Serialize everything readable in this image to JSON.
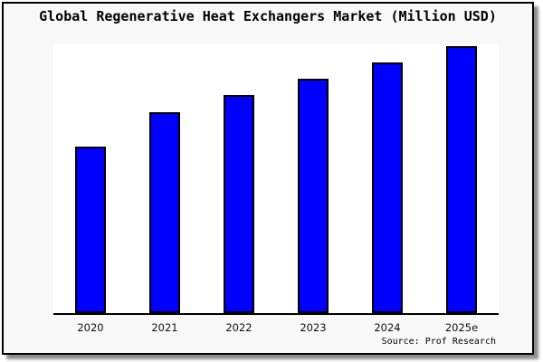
{
  "title": "Global Regenerative Heat Exchangers Market (Million USD)",
  "source": "Source: Prof Research",
  "colors": {
    "bar_fill": "#0000fe",
    "bar_border": "#000000",
    "frame_background": "#f8f8f8",
    "plot_background": "#ffffff",
    "axis_line": "#000000",
    "text": "#000000"
  },
  "chart_data": {
    "type": "bar",
    "title": "Global Regenerative Heat Exchangers Market (Million USD)",
    "categories": [
      "2020",
      "2021",
      "2022",
      "2023",
      "2024",
      "2025e"
    ],
    "values": [
      62.4,
      75.3,
      81.7,
      87.8,
      93.9,
      100
    ],
    "xlabel": "",
    "ylabel": "",
    "ylim": [
      0,
      100
    ],
    "y_axis_visible": false,
    "grid": false,
    "legend": false,
    "annotation": "Source: Prof Research"
  }
}
